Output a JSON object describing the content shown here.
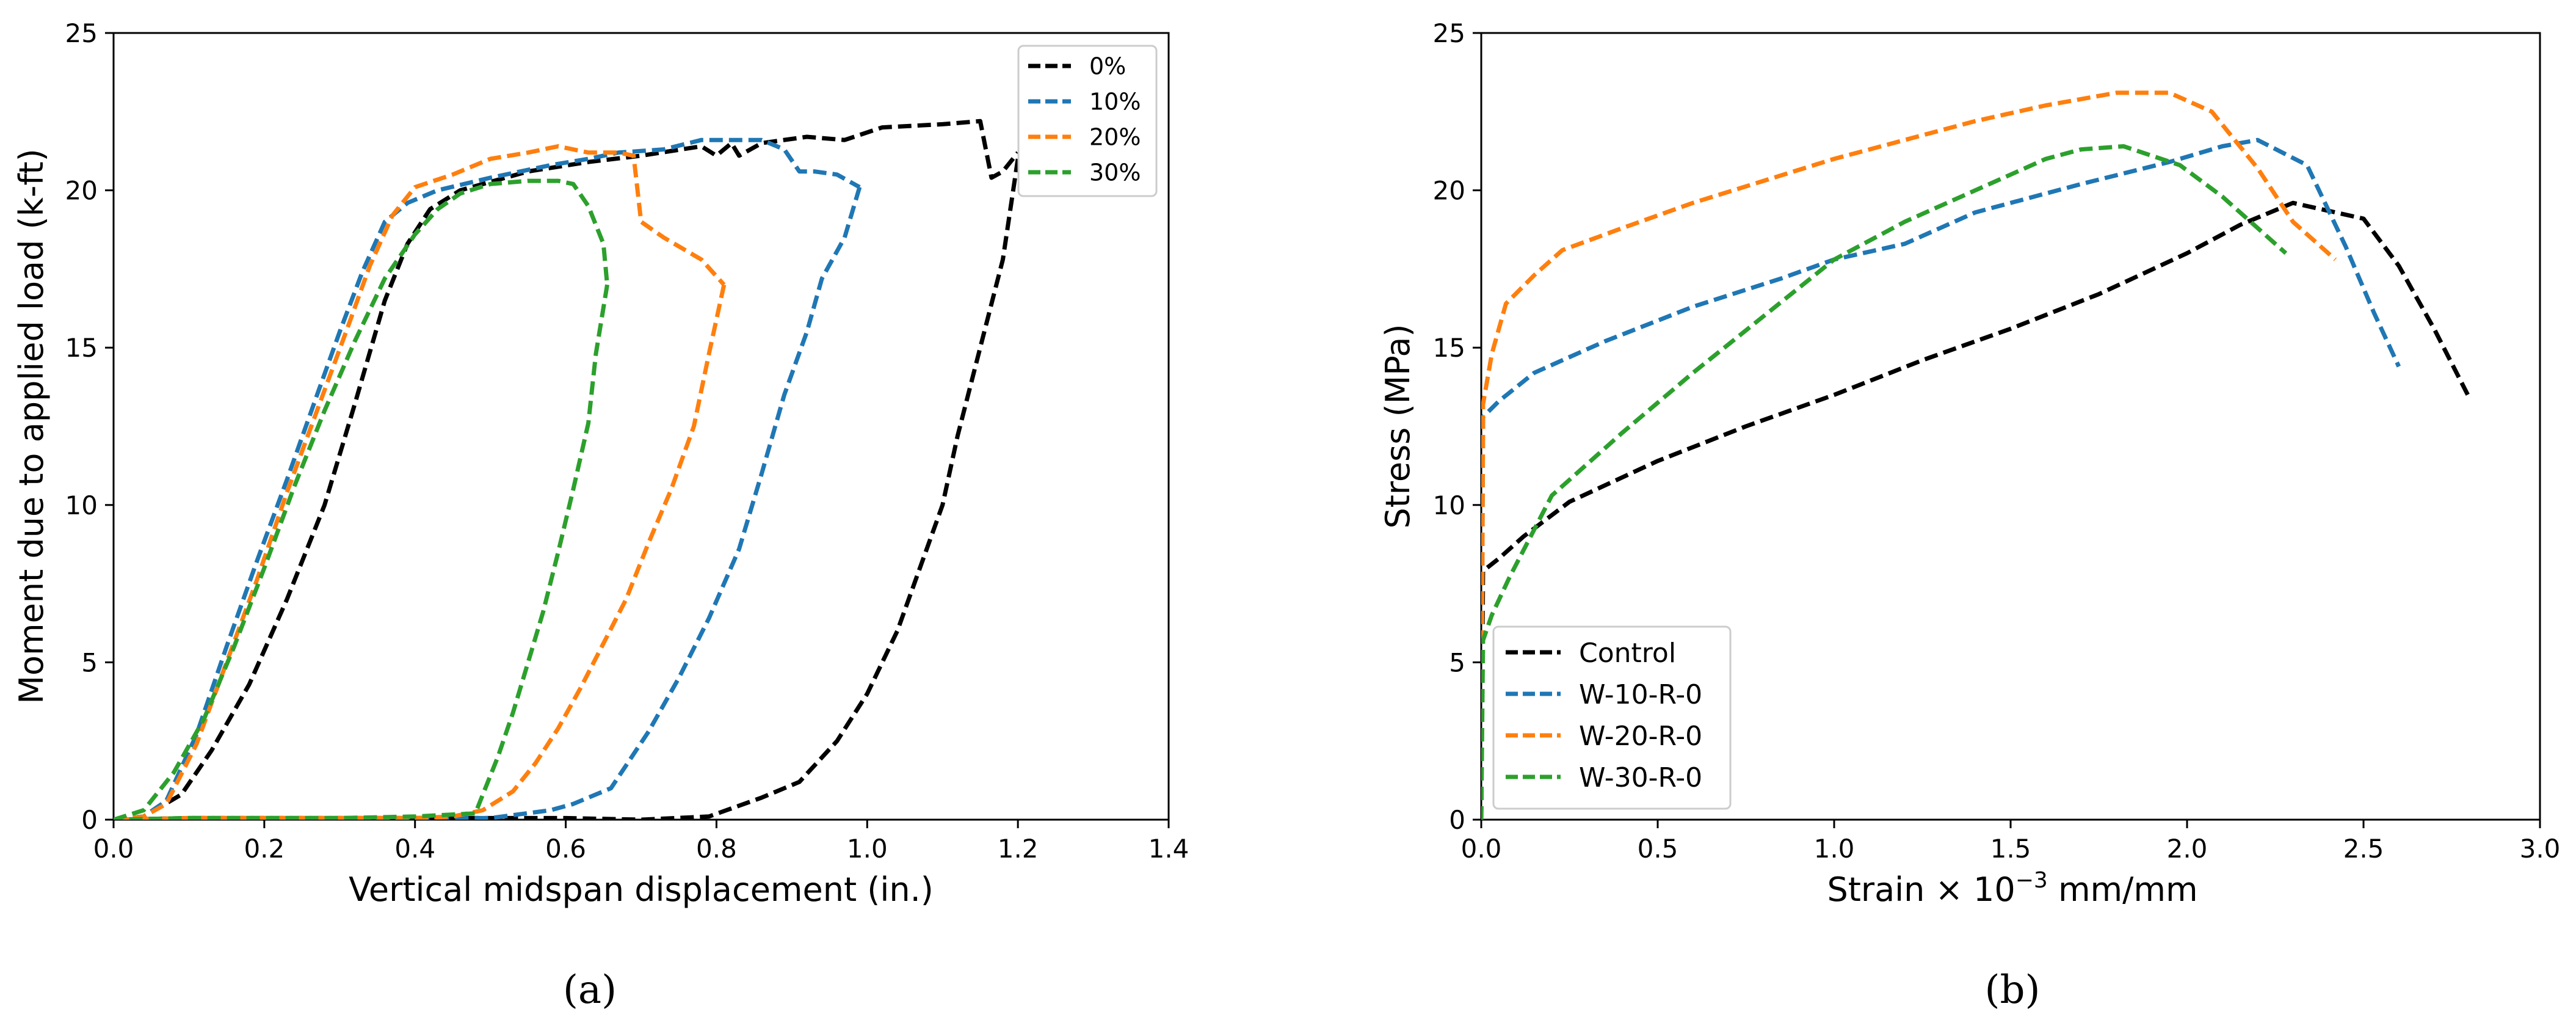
{
  "figure": {
    "captions": [
      "(a)",
      "(b)"
    ]
  },
  "chart_data": [
    {
      "id": "a",
      "type": "line",
      "title": "",
      "xlabel": "Vertical midspan displacement (in.)",
      "ylabel": "Moment due to applied load (k-ft)",
      "xlim": [
        0.0,
        1.4
      ],
      "ylim": [
        0,
        25
      ],
      "xticks": [
        "0.0",
        "0.2",
        "0.4",
        "0.6",
        "0.8",
        "1.0",
        "1.2",
        "1.4"
      ],
      "yticks": [
        "0",
        "5",
        "10",
        "15",
        "20",
        "25"
      ],
      "grid": false,
      "legend_position": "top-right",
      "series": [
        {
          "name": "0%",
          "color": "#000000",
          "points": [
            [
              0,
              0
            ],
            [
              0.04,
              0.1
            ],
            [
              0.09,
              0.8
            ],
            [
              0.13,
              2.2
            ],
            [
              0.18,
              4.3
            ],
            [
              0.23,
              7.0
            ],
            [
              0.28,
              10.0
            ],
            [
              0.32,
              13.2
            ],
            [
              0.36,
              16.5
            ],
            [
              0.39,
              18.3
            ],
            [
              0.42,
              19.4
            ],
            [
              0.46,
              20.0
            ],
            [
              0.55,
              20.6
            ],
            [
              0.63,
              20.9
            ],
            [
              0.7,
              21.1
            ],
            [
              0.78,
              21.4
            ],
            [
              0.8,
              21.1
            ],
            [
              0.82,
              21.5
            ],
            [
              0.83,
              21.1
            ],
            [
              0.86,
              21.5
            ],
            [
              0.92,
              21.7
            ],
            [
              0.97,
              21.6
            ],
            [
              1.02,
              22.0
            ],
            [
              1.1,
              22.1
            ],
            [
              1.15,
              22.2
            ],
            [
              1.165,
              20.4
            ],
            [
              1.18,
              20.6
            ],
            [
              1.2,
              21.2
            ]
          ],
          "unload": [
            [
              1.2,
              21.0
            ],
            [
              1.18,
              17.8
            ],
            [
              1.15,
              15.0
            ],
            [
              1.12,
              12.2
            ],
            [
              1.1,
              10.0
            ],
            [
              1.07,
              8.0
            ],
            [
              1.04,
              6.0
            ],
            [
              1.0,
              4.0
            ],
            [
              0.96,
              2.5
            ],
            [
              0.91,
              1.2
            ],
            [
              0.86,
              0.7
            ],
            [
              0.79,
              0.1
            ],
            [
              0.7,
              0.0
            ],
            [
              0.6,
              0.05
            ],
            [
              0.5,
              0.05
            ],
            [
              0.4,
              0.05
            ],
            [
              0.3,
              0.05
            ],
            [
              0.2,
              0.05
            ],
            [
              0.1,
              0.05
            ],
            [
              0,
              0
            ]
          ]
        },
        {
          "name": "10%",
          "color": "#1f77b4",
          "points": [
            [
              0,
              0
            ],
            [
              0.04,
              0.1
            ],
            [
              0.07,
              0.6
            ],
            [
              0.11,
              2.7
            ],
            [
              0.15,
              5.5
            ],
            [
              0.19,
              8.2
            ],
            [
              0.23,
              10.8
            ],
            [
              0.27,
              13.5
            ],
            [
              0.3,
              15.5
            ],
            [
              0.33,
              17.4
            ],
            [
              0.36,
              19.0
            ],
            [
              0.39,
              19.6
            ],
            [
              0.43,
              20.0
            ],
            [
              0.5,
              20.4
            ],
            [
              0.58,
              20.8
            ],
            [
              0.63,
              21.0
            ],
            [
              0.67,
              21.2
            ],
            [
              0.73,
              21.3
            ],
            [
              0.78,
              21.6
            ],
            [
              0.82,
              21.6
            ],
            [
              0.86,
              21.6
            ],
            [
              0.89,
              21.3
            ],
            [
              0.91,
              20.6
            ],
            [
              0.93,
              20.6
            ],
            [
              0.96,
              20.5
            ],
            [
              0.99,
              20.1
            ]
          ],
          "unload": [
            [
              0.99,
              20.1
            ],
            [
              0.97,
              18.5
            ],
            [
              0.94,
              17.2
            ],
            [
              0.92,
              15.5
            ],
            [
              0.89,
              13.5
            ],
            [
              0.86,
              11.0
            ],
            [
              0.83,
              8.6
            ],
            [
              0.79,
              6.4
            ],
            [
              0.75,
              4.5
            ],
            [
              0.71,
              2.8
            ],
            [
              0.66,
              1.0
            ],
            [
              0.61,
              0.5
            ],
            [
              0.58,
              0.3
            ],
            [
              0.5,
              0.05
            ],
            [
              0.4,
              0.05
            ],
            [
              0.3,
              0.05
            ],
            [
              0.2,
              0.05
            ],
            [
              0.1,
              0.05
            ],
            [
              0,
              0
            ]
          ]
        },
        {
          "name": "20%",
          "color": "#ff7f0e",
          "points": [
            [
              0,
              0
            ],
            [
              0.04,
              0.1
            ],
            [
              0.07,
              0.5
            ],
            [
              0.11,
              2.4
            ],
            [
              0.15,
              5.0
            ],
            [
              0.19,
              7.6
            ],
            [
              0.23,
              10.4
            ],
            [
              0.27,
              13.0
            ],
            [
              0.31,
              15.6
            ],
            [
              0.34,
              17.6
            ],
            [
              0.37,
              19.2
            ],
            [
              0.4,
              20.1
            ],
            [
              0.45,
              20.5
            ],
            [
              0.5,
              21.0
            ],
            [
              0.55,
              21.2
            ],
            [
              0.59,
              21.4
            ],
            [
              0.63,
              21.2
            ],
            [
              0.67,
              21.2
            ],
            [
              0.69,
              21.1
            ],
            [
              0.7,
              19.0
            ],
            [
              0.73,
              18.5
            ],
            [
              0.78,
              17.8
            ],
            [
              0.81,
              17.0
            ]
          ],
          "unload": [
            [
              0.81,
              17.0
            ],
            [
              0.79,
              14.8
            ],
            [
              0.77,
              12.5
            ],
            [
              0.74,
              10.5
            ],
            [
              0.71,
              8.8
            ],
            [
              0.68,
              7.0
            ],
            [
              0.65,
              5.6
            ],
            [
              0.62,
              4.2
            ],
            [
              0.59,
              2.9
            ],
            [
              0.56,
              1.8
            ],
            [
              0.53,
              0.9
            ],
            [
              0.49,
              0.3
            ],
            [
              0.45,
              0.1
            ],
            [
              0.4,
              0.05
            ],
            [
              0.3,
              0.05
            ],
            [
              0.2,
              0.05
            ],
            [
              0.1,
              0.05
            ],
            [
              0,
              0
            ]
          ]
        },
        {
          "name": "30%",
          "color": "#2ca02c",
          "points": [
            [
              0,
              0
            ],
            [
              0.04,
              0.3
            ],
            [
              0.08,
              1.5
            ],
            [
              0.12,
              3.2
            ],
            [
              0.16,
              5.5
            ],
            [
              0.2,
              8.0
            ],
            [
              0.24,
              10.6
            ],
            [
              0.28,
              13.0
            ],
            [
              0.32,
              15.2
            ],
            [
              0.36,
              17.2
            ],
            [
              0.4,
              18.6
            ],
            [
              0.43,
              19.4
            ],
            [
              0.46,
              19.9
            ],
            [
              0.5,
              20.2
            ],
            [
              0.55,
              20.3
            ],
            [
              0.59,
              20.3
            ],
            [
              0.61,
              20.2
            ],
            [
              0.63,
              19.5
            ],
            [
              0.65,
              18.3
            ],
            [
              0.655,
              17.0
            ]
          ],
          "unload": [
            [
              0.655,
              17.0
            ],
            [
              0.64,
              14.8
            ],
            [
              0.63,
              12.6
            ],
            [
              0.61,
              10.5
            ],
            [
              0.59,
              8.5
            ],
            [
              0.57,
              6.6
            ],
            [
              0.55,
              5.0
            ],
            [
              0.53,
              3.4
            ],
            [
              0.51,
              2.0
            ],
            [
              0.49,
              0.8
            ],
            [
              0.48,
              0.2
            ],
            [
              0.4,
              0.1
            ],
            [
              0.3,
              0.05
            ],
            [
              0.2,
              0.05
            ],
            [
              0.1,
              0.05
            ],
            [
              0,
              0
            ]
          ]
        }
      ]
    },
    {
      "id": "b",
      "type": "line",
      "title": "",
      "xlabel": "Strain × 10",
      "xlabel_exponent": "−3",
      "xlabel_suffix": " mm/mm",
      "ylabel": "Stress (MPa)",
      "xlim": [
        0.0,
        3.0
      ],
      "ylim": [
        0,
        25
      ],
      "xticks": [
        "0.0",
        "0.5",
        "1.0",
        "1.5",
        "2.0",
        "2.5",
        "3.0"
      ],
      "yticks": [
        "0",
        "5",
        "10",
        "15",
        "20",
        "25"
      ],
      "grid": false,
      "legend_position": "bottom-left",
      "series": [
        {
          "name": "Control",
          "color": "#000000",
          "points": [
            [
              0,
              0
            ],
            [
              0.005,
              7.9
            ],
            [
              0.05,
              8.3
            ],
            [
              0.12,
              9.0
            ],
            [
              0.25,
              10.1
            ],
            [
              0.5,
              11.4
            ],
            [
              0.75,
              12.5
            ],
            [
              1.0,
              13.5
            ],
            [
              1.25,
              14.6
            ],
            [
              1.5,
              15.6
            ],
            [
              1.75,
              16.7
            ],
            [
              2.0,
              18.0
            ],
            [
              2.15,
              18.9
            ],
            [
              2.3,
              19.6
            ],
            [
              2.42,
              19.3
            ],
            [
              2.5,
              19.1
            ],
            [
              2.6,
              17.6
            ],
            [
              2.7,
              15.6
            ],
            [
              2.8,
              13.4
            ]
          ]
        },
        {
          "name": "W-10-R-0",
          "color": "#1f77b4",
          "points": [
            [
              0,
              0
            ],
            [
              0.005,
              12.8
            ],
            [
              0.05,
              13.3
            ],
            [
              0.15,
              14.2
            ],
            [
              0.35,
              15.2
            ],
            [
              0.6,
              16.3
            ],
            [
              0.85,
              17.2
            ],
            [
              1.0,
              17.8
            ],
            [
              1.2,
              18.3
            ],
            [
              1.4,
              19.3
            ],
            [
              1.7,
              20.2
            ],
            [
              1.95,
              20.9
            ],
            [
              2.1,
              21.4
            ],
            [
              2.2,
              21.6
            ],
            [
              2.34,
              20.8
            ],
            [
              2.45,
              18.2
            ],
            [
              2.53,
              16.1
            ],
            [
              2.6,
              14.4
            ]
          ]
        },
        {
          "name": "W-20-R-0",
          "color": "#ff7f0e",
          "points": [
            [
              0,
              0
            ],
            [
              0.005,
              13.2
            ],
            [
              0.03,
              14.8
            ],
            [
              0.07,
              16.4
            ],
            [
              0.15,
              17.3
            ],
            [
              0.23,
              18.1
            ],
            [
              0.4,
              18.8
            ],
            [
              0.6,
              19.6
            ],
            [
              0.8,
              20.3
            ],
            [
              1.0,
              21.0
            ],
            [
              1.2,
              21.6
            ],
            [
              1.4,
              22.2
            ],
            [
              1.6,
              22.7
            ],
            [
              1.8,
              23.1
            ],
            [
              1.95,
              23.1
            ],
            [
              2.07,
              22.5
            ],
            [
              2.2,
              20.7
            ],
            [
              2.3,
              19.0
            ],
            [
              2.42,
              17.8
            ]
          ]
        },
        {
          "name": "W-30-R-0",
          "color": "#2ca02c",
          "points": [
            [
              0,
              0
            ],
            [
              0.005,
              5.7
            ],
            [
              0.03,
              6.5
            ],
            [
              0.08,
              7.7
            ],
            [
              0.2,
              10.3
            ],
            [
              0.4,
              12.3
            ],
            [
              0.6,
              14.2
            ],
            [
              0.8,
              16.0
            ],
            [
              1.0,
              17.8
            ],
            [
              1.2,
              19.0
            ],
            [
              1.4,
              20.0
            ],
            [
              1.6,
              21.0
            ],
            [
              1.7,
              21.3
            ],
            [
              1.82,
              21.4
            ],
            [
              1.98,
              20.8
            ],
            [
              2.1,
              19.8
            ],
            [
              2.2,
              18.8
            ],
            [
              2.28,
              18.0
            ]
          ]
        }
      ]
    }
  ]
}
